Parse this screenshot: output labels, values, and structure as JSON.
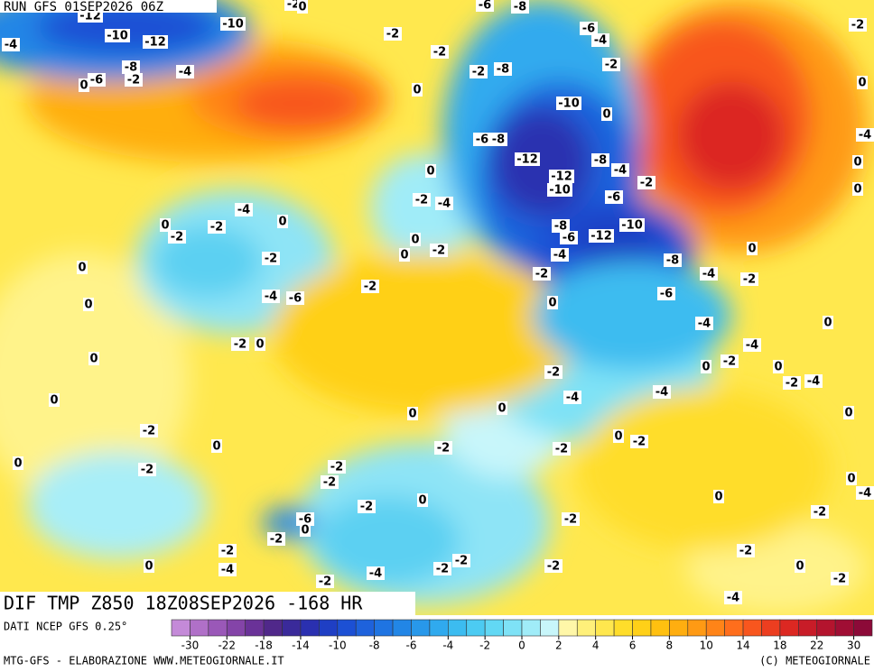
{
  "header": {
    "run": "RUN GFS 01SEP2026 06Z"
  },
  "map_title": "DIF TMP Z850 18Z08SEP2026 -168 HR",
  "contour_labels": [
    -12,
    -10,
    -12,
    -4,
    -8,
    -6,
    0,
    -2,
    -4,
    -10,
    -2,
    0,
    -2,
    -2,
    -2,
    -8,
    0,
    -6,
    -8,
    -6,
    -4,
    -2,
    0,
    -10,
    -6,
    -8,
    -12,
    -12,
    -10,
    -8,
    -4,
    -2,
    -6,
    -2,
    -4,
    0,
    -10,
    -12,
    -8,
    -6,
    -4,
    -8,
    -4,
    -2,
    0,
    -6,
    -2,
    0,
    0,
    -2,
    0,
    -4,
    0,
    -2,
    0,
    -2,
    0,
    -2,
    -4,
    -6,
    -2,
    0,
    -2,
    0,
    0,
    -4,
    -4,
    0,
    0,
    -2,
    0,
    -2,
    -4,
    -2,
    -4,
    -4,
    0,
    0,
    0,
    -2,
    0,
    -2,
    -2,
    0,
    -2,
    0,
    0,
    -2,
    -2,
    -2,
    0,
    -2,
    0,
    -2,
    0,
    -4,
    -2,
    -6,
    0,
    -2,
    -2,
    0,
    -4,
    -2,
    -4,
    -2,
    -2,
    -2,
    -2,
    0,
    -2,
    -4,
    -2,
    0,
    -4,
    0,
    0
  ],
  "legend": {
    "source": "DATI NCEP GFS 0.25°",
    "ticks": [
      -30,
      -22,
      -18,
      -14,
      -10,
      -8,
      -6,
      -4,
      -2,
      0,
      2,
      4,
      6,
      8,
      10,
      14,
      18,
      22,
      30
    ],
    "colors": [
      "#c48ad8",
      "#b070c8",
      "#9a58b8",
      "#8444a8",
      "#6a3298",
      "#50288a",
      "#3a2a9a",
      "#2a30b0",
      "#1f3fc4",
      "#1c50d4",
      "#1e62dc",
      "#1f74e2",
      "#2286e6",
      "#2898ea",
      "#30aaee",
      "#3cbcf0",
      "#4ccbf2",
      "#62d8f4",
      "#7ee2f6",
      "#a0ecf8",
      "#c8f6fa",
      "#fff7a8",
      "#fff07a",
      "#ffe74e",
      "#ffdd2a",
      "#ffd018",
      "#ffc010",
      "#ffae10",
      "#ff9a14",
      "#ff8418",
      "#ff6e1c",
      "#f8561e",
      "#ec3e20",
      "#dc2822",
      "#c81c28",
      "#b4142e",
      "#a00e34",
      "#8c0a38"
    ]
  },
  "footer": {
    "credit": "MTG-GFS - ELABORAZIONE WWW.METEOGIORNALE.IT",
    "copyright": "(C) METEOGIORNALE"
  }
}
